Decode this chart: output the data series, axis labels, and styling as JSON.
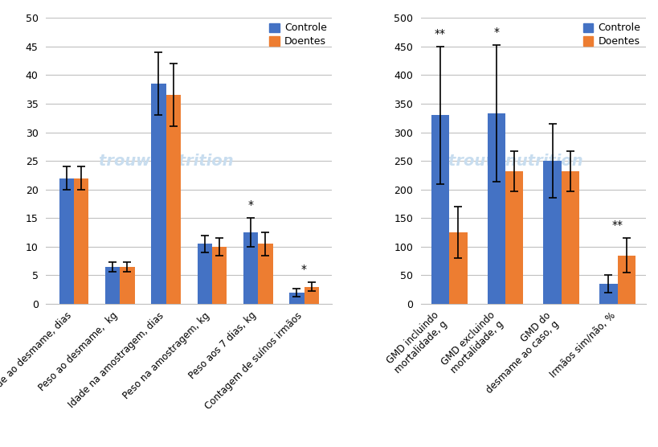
{
  "left": {
    "categories": [
      "Idade ao desmame, dias",
      "Peso ao desmame,  kg",
      "Idade na amostragem, dias",
      "Peso na amostragem, kg",
      "Peso aos 7 dias, kg",
      "Contagem de suínos irmãos"
    ],
    "controle_vals": [
      22,
      6.5,
      38.5,
      10.5,
      12.5,
      2
    ],
    "doentes_vals": [
      22,
      6.5,
      36.5,
      10,
      10.5,
      3
    ],
    "controle_err": [
      2.0,
      0.8,
      5.5,
      1.5,
      2.5,
      0.7
    ],
    "doentes_err": [
      2.0,
      0.8,
      5.5,
      1.5,
      2.0,
      0.8
    ],
    "significance": [
      "",
      "",
      "",
      "",
      "*",
      "*"
    ],
    "sig_on_controle": [
      false,
      false,
      false,
      false,
      true,
      false
    ],
    "ylim": [
      0,
      50
    ],
    "yticks": [
      0,
      5,
      10,
      15,
      20,
      25,
      30,
      35,
      40,
      45,
      50
    ]
  },
  "right": {
    "categories": [
      "GMD incluindo\nmortalidade, g",
      "GMD excluindo\nmortalidade, g",
      "GMD do\ndesmame ao caso, g",
      "Irmãos sim/não, %"
    ],
    "controle_vals": [
      330,
      333,
      250,
      35
    ],
    "doentes_vals": [
      125,
      232,
      232,
      85
    ],
    "controle_err": [
      120,
      120,
      65,
      15
    ],
    "doentes_err": [
      45,
      35,
      35,
      30
    ],
    "significance": [
      "**",
      "*",
      "",
      "**"
    ],
    "sig_on_controle": [
      true,
      true,
      false,
      false
    ],
    "ylim": [
      0,
      500
    ],
    "yticks": [
      0,
      50,
      100,
      150,
      200,
      250,
      300,
      350,
      400,
      450,
      500
    ]
  },
  "color_controle": "#4472C4",
  "color_doentes": "#ED7D31",
  "bar_width": 0.32,
  "legend_labels": [
    "Controle",
    "Doentes"
  ],
  "background_color": "#FFFFFF",
  "watermark_color": "#C8DDEF",
  "grid_color": "#C0C0C0"
}
